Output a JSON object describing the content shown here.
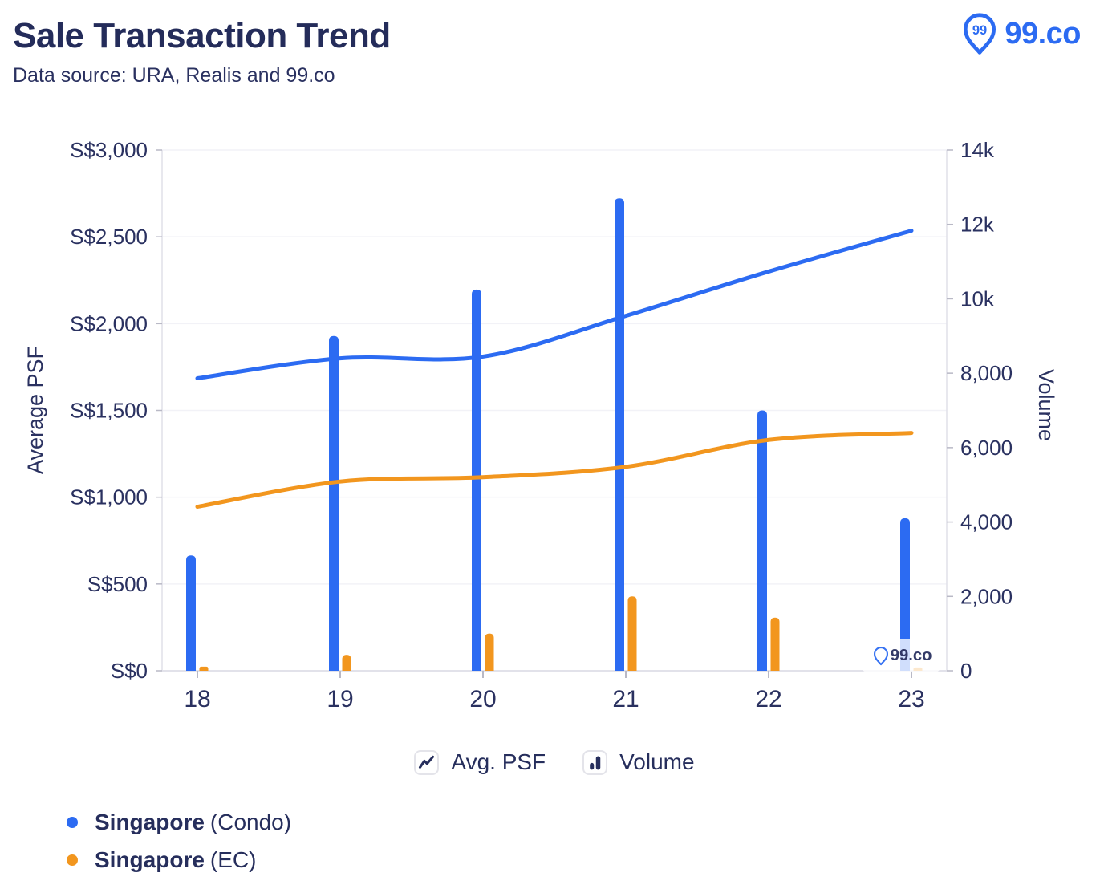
{
  "header": {
    "title": "Sale Transaction Trend",
    "subtitle": "Data source: URA, Realis and 99.co",
    "brand": "99.co"
  },
  "watermark": "99.co",
  "colors": {
    "condo_blue": "#2C6BF2",
    "ec_orange": "#F2961E",
    "navy_text": "#262E5C",
    "grid_line": "#F2F2F7",
    "axis_line": "#E2E2EA",
    "tick_mark": "#B9B9C6"
  },
  "metric_legend": [
    {
      "label": "Avg. PSF",
      "icon": "line-chart-icon"
    },
    {
      "label": "Volume",
      "icon": "bar-chart-icon"
    }
  ],
  "series_legend": [
    {
      "name": "Singapore",
      "qualifier": "(Condo)",
      "color_key": "condo_blue"
    },
    {
      "name": "Singapore",
      "qualifier": "(EC)",
      "color_key": "ec_orange"
    }
  ],
  "chart_data": {
    "type": "combo: line (Avg. PSF, left axis) + bar (Volume, right axis), dual y-axis",
    "categories": [
      "18",
      "19",
      "20",
      "21",
      "22",
      "23"
    ],
    "left_axis": {
      "title": "Average PSF",
      "range": [
        0,
        3000
      ],
      "tick_values": [
        0,
        500,
        1000,
        1500,
        2000,
        2500,
        3000
      ],
      "tick_labels": [
        "S$0",
        "S$500",
        "S$1,000",
        "S$1,500",
        "S$2,000",
        "S$2,500",
        "S$3,000"
      ]
    },
    "right_axis": {
      "title": "Volume",
      "range": [
        0,
        14000
      ],
      "tick_values": [
        0,
        2000,
        4000,
        6000,
        8000,
        10000,
        12000,
        14000
      ],
      "tick_labels": [
        "0",
        "2,000",
        "4,000",
        "6,000",
        "8,000",
        "10k",
        "12k",
        "14k"
      ]
    },
    "grid": "horizontal gridlines at left-axis ticks",
    "legend_position": "bottom",
    "series": [
      {
        "name": "Singapore (Condo) — Avg. PSF",
        "type": "line",
        "axis": "left",
        "color_key": "condo_blue",
        "values": [
          1685,
          1800,
          1810,
          2045,
          2300,
          2535
        ]
      },
      {
        "name": "Singapore (EC) — Avg. PSF",
        "type": "line",
        "axis": "left",
        "color_key": "ec_orange",
        "values": [
          945,
          1090,
          1115,
          1175,
          1330,
          1370
        ]
      },
      {
        "name": "Singapore (Condo) — Volume",
        "type": "bar",
        "axis": "right",
        "color_key": "condo_blue",
        "values": [
          3100,
          9000,
          10250,
          12700,
          7000,
          4100
        ]
      },
      {
        "name": "Singapore (EC) — Volume",
        "type": "bar",
        "axis": "right",
        "color_key": "ec_orange",
        "values": [
          110,
          430,
          1000,
          2000,
          1430,
          90
        ]
      }
    ]
  }
}
